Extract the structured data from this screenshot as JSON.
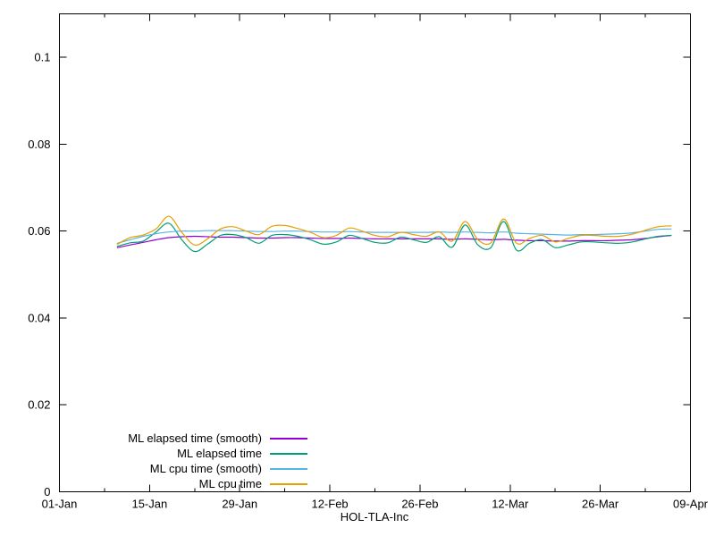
{
  "figure": {
    "background": "#ffffff",
    "axis_color": "#000000",
    "text_color": "#000000"
  },
  "chart_data": {
    "type": "line",
    "title": "",
    "xlabel": "HOL-TLA-Inc",
    "ylabel": "",
    "grid": false,
    "legend_position": "inside-bottom-left",
    "x_axis": {
      "range_days": [
        0,
        98
      ],
      "ticks_major": [
        {
          "day": 0,
          "label": "01-Jan"
        },
        {
          "day": 14,
          "label": "15-Jan"
        },
        {
          "day": 28,
          "label": "29-Jan"
        },
        {
          "day": 42,
          "label": "12-Feb"
        },
        {
          "day": 56,
          "label": "26-Feb"
        },
        {
          "day": 70,
          "label": "12-Mar"
        },
        {
          "day": 84,
          "label": "26-Mar"
        },
        {
          "day": 98,
          "label": "09-Apr"
        }
      ],
      "ticks_minor_days": [
        7,
        21,
        35,
        49,
        63,
        77,
        91
      ]
    },
    "y_axis": {
      "range": [
        0,
        0.11
      ],
      "ticks": [
        {
          "value": 0,
          "label": "0"
        },
        {
          "value": 0.02,
          "label": "0.02"
        },
        {
          "value": 0.04,
          "label": "0.04"
        },
        {
          "value": 0.06,
          "label": "0.06"
        },
        {
          "value": 0.08,
          "label": "0.08"
        },
        {
          "value": 0.1,
          "label": "0.1"
        }
      ]
    },
    "x_days": [
      9,
      11,
      13,
      15,
      17,
      19,
      21,
      23,
      25,
      27,
      29,
      31,
      33,
      35,
      37,
      39,
      41,
      43,
      45,
      47,
      49,
      51,
      53,
      55,
      57,
      59,
      61,
      63,
      65,
      67,
      69,
      71,
      73,
      75,
      77,
      79,
      81,
      83,
      85,
      87,
      89,
      91,
      93,
      95
    ],
    "series": [
      {
        "name": "ML elapsed time (smooth)",
        "color": "#9400d3",
        "values": [
          0.0562,
          0.0568,
          0.0574,
          0.058,
          0.0585,
          0.0587,
          0.0588,
          0.0587,
          0.0586,
          0.0586,
          0.0585,
          0.0584,
          0.0584,
          0.0585,
          0.0585,
          0.0584,
          0.0583,
          0.0583,
          0.0584,
          0.0583,
          0.0582,
          0.0582,
          0.0582,
          0.0582,
          0.0582,
          0.0582,
          0.0581,
          0.0582,
          0.0581,
          0.058,
          0.0581,
          0.0579,
          0.0578,
          0.0578,
          0.0577,
          0.0577,
          0.0578,
          0.0578,
          0.0578,
          0.0579,
          0.058,
          0.0583,
          0.0587,
          0.059
        ]
      },
      {
        "name": "ML elapsed time",
        "color": "#009e73",
        "values": [
          0.0565,
          0.0573,
          0.0577,
          0.0598,
          0.0618,
          0.058,
          0.0553,
          0.057,
          0.059,
          0.0592,
          0.0585,
          0.0572,
          0.059,
          0.0592,
          0.0588,
          0.058,
          0.057,
          0.0575,
          0.059,
          0.0583,
          0.0574,
          0.0573,
          0.0586,
          0.058,
          0.0574,
          0.0587,
          0.0563,
          0.0614,
          0.0568,
          0.0562,
          0.0622,
          0.0556,
          0.0572,
          0.058,
          0.0562,
          0.0568,
          0.0575,
          0.0575,
          0.0573,
          0.0572,
          0.0575,
          0.0582,
          0.0588,
          0.059
        ]
      },
      {
        "name": "ML cpu time (smooth)",
        "color": "#56b4e9",
        "values": [
          0.0572,
          0.058,
          0.0588,
          0.0594,
          0.0598,
          0.06,
          0.06,
          0.0601,
          0.0601,
          0.0601,
          0.06,
          0.0599,
          0.0599,
          0.06,
          0.06,
          0.0599,
          0.0598,
          0.0598,
          0.0599,
          0.0598,
          0.0597,
          0.0597,
          0.0597,
          0.0597,
          0.0597,
          0.0598,
          0.0597,
          0.0598,
          0.0597,
          0.0596,
          0.0598,
          0.0595,
          0.0594,
          0.0593,
          0.0592,
          0.0591,
          0.0592,
          0.0592,
          0.0593,
          0.0594,
          0.0596,
          0.06,
          0.0604,
          0.0605
        ]
      },
      {
        "name": "ML cpu time",
        "color": "#e69f00",
        "values": [
          0.057,
          0.0585,
          0.0591,
          0.0605,
          0.0634,
          0.0597,
          0.0568,
          0.0582,
          0.0605,
          0.061,
          0.06,
          0.0592,
          0.0611,
          0.0613,
          0.0606,
          0.0597,
          0.0585,
          0.059,
          0.0607,
          0.06,
          0.059,
          0.0587,
          0.0597,
          0.0592,
          0.0588,
          0.0598,
          0.0577,
          0.0622,
          0.058,
          0.0573,
          0.0628,
          0.0572,
          0.0583,
          0.059,
          0.0575,
          0.0583,
          0.059,
          0.059,
          0.0588,
          0.0588,
          0.0593,
          0.0602,
          0.061,
          0.0612
        ]
      }
    ]
  }
}
